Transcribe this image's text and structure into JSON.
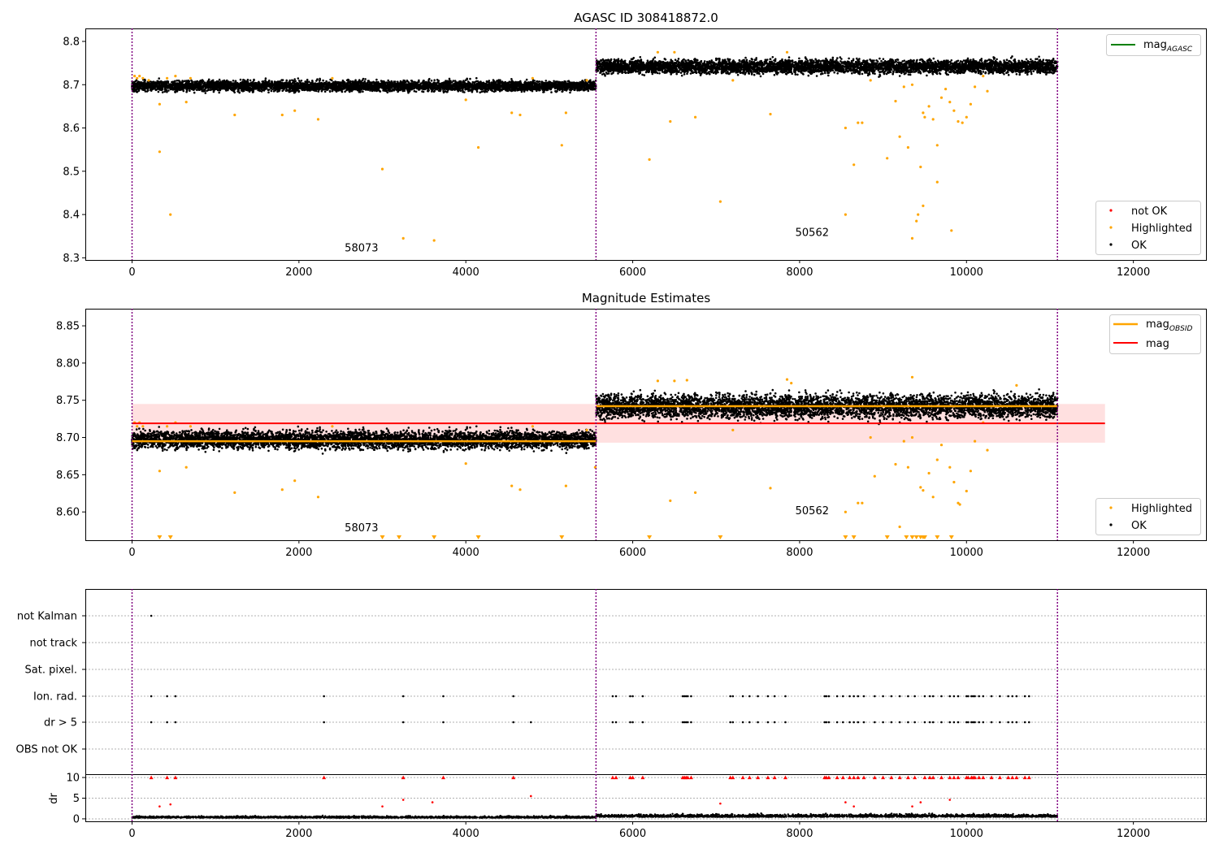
{
  "chart_data": [
    {
      "type": "scatter",
      "title": "AGASC ID 308418872.0",
      "xlim": [
        -560,
        12880
      ],
      "ylim": [
        8.295,
        8.83
      ],
      "xticks": [
        0,
        2000,
        4000,
        6000,
        8000,
        10000,
        12000
      ],
      "xtick_labels": [
        "0",
        "2000",
        "4000",
        "6000",
        "8000",
        "10000",
        "12000"
      ],
      "yticks": [
        8.3,
        8.4,
        8.5,
        8.6,
        8.7,
        8.8
      ],
      "ytick_labels": [
        "8.3",
        "8.4",
        "8.5",
        "8.6",
        "8.7",
        "8.8"
      ],
      "vlines": [
        0,
        5560,
        11090
      ],
      "colors": {
        "ok": "#000000",
        "highlighted": "#ffa500",
        "not_ok": "#ff0000",
        "mag_agasc": "#008000",
        "vline": "#800080"
      },
      "series": [
        {
          "name": "OK",
          "segments": [
            {
              "x0": 0,
              "x1": 5560,
              "center": 8.697,
              "spread": 0.012
            },
            {
              "x0": 5560,
              "x1": 11090,
              "center": 8.742,
              "spread": 0.016
            }
          ]
        },
        {
          "name": "Highlighted",
          "points": [
            [
              30,
              8.72
            ],
            [
              60,
              8.715
            ],
            [
              90,
              8.72
            ],
            [
              130,
              8.715
            ],
            [
              200,
              8.71
            ],
            [
              330,
              8.655
            ],
            [
              330,
              8.545
            ],
            [
              460,
              8.4
            ],
            [
              420,
              8.715
            ],
            [
              520,
              8.72
            ],
            [
              650,
              8.66
            ],
            [
              700,
              8.715
            ],
            [
              1230,
              8.63
            ],
            [
              1800,
              8.63
            ],
            [
              1950,
              8.64
            ],
            [
              2230,
              8.62
            ],
            [
              2400,
              8.715
            ],
            [
              3000,
              8.505
            ],
            [
              3250,
              8.345
            ],
            [
              3620,
              8.34
            ],
            [
              4000,
              8.665
            ],
            [
              4150,
              8.555
            ],
            [
              4550,
              8.635
            ],
            [
              4650,
              8.63
            ],
            [
              4800,
              8.715
            ],
            [
              5150,
              8.56
            ],
            [
              5200,
              8.635
            ],
            [
              5450,
              8.71
            ],
            [
              6200,
              8.527
            ],
            [
              6450,
              8.615
            ],
            [
              6750,
              8.625
            ],
            [
              7050,
              8.43
            ],
            [
              7650,
              8.632
            ],
            [
              7200,
              8.71
            ],
            [
              6300,
              8.775
            ],
            [
              6500,
              8.775
            ],
            [
              7850,
              8.775
            ],
            [
              8550,
              8.6
            ],
            [
              8550,
              8.4
            ],
            [
              8650,
              8.515
            ],
            [
              8700,
              8.612
            ],
            [
              8750,
              8.612
            ],
            [
              8850,
              8.71
            ],
            [
              9050,
              8.53
            ],
            [
              9150,
              8.662
            ],
            [
              9200,
              8.58
            ],
            [
              9300,
              8.555
            ],
            [
              9350,
              8.345
            ],
            [
              9350,
              8.7
            ],
            [
              9400,
              8.385
            ],
            [
              9420,
              8.4
            ],
            [
              9450,
              8.51
            ],
            [
              9480,
              8.42
            ],
            [
              9480,
              8.635
            ],
            [
              9500,
              8.625
            ],
            [
              9550,
              8.65
            ],
            [
              9600,
              8.62
            ],
            [
              9650,
              8.56
            ],
            [
              9650,
              8.475
            ],
            [
              9700,
              8.67
            ],
            [
              9750,
              8.69
            ],
            [
              9800,
              8.66
            ],
            [
              9820,
              8.363
            ],
            [
              9850,
              8.64
            ],
            [
              9900,
              8.615
            ],
            [
              9950,
              8.612
            ],
            [
              10000,
              8.625
            ],
            [
              10050,
              8.655
            ],
            [
              10100,
              8.695
            ],
            [
              10200,
              8.72
            ],
            [
              10250,
              8.685
            ],
            [
              9250,
              8.695
            ]
          ]
        }
      ],
      "legend_lines": [
        {
          "name": "mag",
          "subscript": "AGASC"
        }
      ],
      "legend_points": [
        "not OK",
        "Highlighted",
        "OK"
      ],
      "annotations": [
        {
          "text": "58073",
          "x": 2750,
          "y": 8.315
        },
        {
          "text": "50562",
          "x": 8150,
          "y": 8.35
        }
      ]
    },
    {
      "type": "scatter",
      "title": "Magnitude Estimates",
      "xlim": [
        -560,
        12880
      ],
      "ylim": [
        8.562,
        8.873
      ],
      "xticks": [
        0,
        2000,
        4000,
        6000,
        8000,
        10000,
        12000
      ],
      "xtick_labels": [
        "0",
        "2000",
        "4000",
        "6000",
        "8000",
        "10000",
        "12000"
      ],
      "yticks": [
        8.6,
        8.65,
        8.7,
        8.75,
        8.8,
        8.85
      ],
      "ytick_labels": [
        "8.60",
        "8.65",
        "8.70",
        "8.75",
        "8.80",
        "8.85"
      ],
      "vlines": [
        0,
        5560,
        11090
      ],
      "mag": 8.719,
      "mag_band": [
        8.693,
        8.745
      ],
      "mag_obsid": [
        {
          "x0": 0,
          "x1": 5560,
          "y": 8.695
        },
        {
          "x0": 5560,
          "x1": 11090,
          "y": 8.742
        }
      ],
      "band_xlim": [
        0,
        11660
      ],
      "series": [
        {
          "name": "OK",
          "segments": [
            {
              "x0": 0,
              "x1": 5560,
              "center": 8.697,
              "spread": 0.012
            },
            {
              "x0": 5560,
              "x1": 11090,
              "center": 8.742,
              "spread": 0.016
            }
          ]
        },
        {
          "name": "Highlighted",
          "points": [
            [
              30,
              8.72
            ],
            [
              60,
              8.715
            ],
            [
              90,
              8.72
            ],
            [
              130,
              8.715
            ],
            [
              330,
              8.655
            ],
            [
              420,
              8.715
            ],
            [
              520,
              8.72
            ],
            [
              650,
              8.66
            ],
            [
              700,
              8.715
            ],
            [
              1230,
              8.626
            ],
            [
              1800,
              8.63
            ],
            [
              1950,
              8.642
            ],
            [
              2230,
              8.62
            ],
            [
              2400,
              8.715
            ],
            [
              4000,
              8.665
            ],
            [
              4550,
              8.635
            ],
            [
              4650,
              8.63
            ],
            [
              4800,
              8.715
            ],
            [
              5200,
              8.635
            ],
            [
              5450,
              8.71
            ],
            [
              5550,
              8.66
            ],
            [
              6450,
              8.615
            ],
            [
              6750,
              8.626
            ],
            [
              7650,
              8.632
            ],
            [
              7200,
              8.71
            ],
            [
              6300,
              8.776
            ],
            [
              6500,
              8.776
            ],
            [
              6650,
              8.777
            ],
            [
              7850,
              8.778
            ],
            [
              7900,
              8.773
            ],
            [
              8550,
              8.6
            ],
            [
              8700,
              8.612
            ],
            [
              8750,
              8.612
            ],
            [
              8850,
              8.7
            ],
            [
              8900,
              8.648
            ],
            [
              9150,
              8.664
            ],
            [
              9200,
              8.58
            ],
            [
              9300,
              8.66
            ],
            [
              9350,
              8.781
            ],
            [
              9350,
              8.7
            ],
            [
              9450,
              8.633
            ],
            [
              9480,
              8.629
            ],
            [
              9550,
              8.652
            ],
            [
              9600,
              8.62
            ],
            [
              9650,
              8.67
            ],
            [
              9700,
              8.69
            ],
            [
              9800,
              8.66
            ],
            [
              9850,
              8.64
            ],
            [
              9900,
              8.612
            ],
            [
              9920,
              8.61
            ],
            [
              10000,
              8.628
            ],
            [
              10050,
              8.655
            ],
            [
              10100,
              8.695
            ],
            [
              10200,
              8.72
            ],
            [
              10250,
              8.683
            ],
            [
              10600,
              8.77
            ],
            [
              9250,
              8.695
            ]
          ]
        },
        {
          "name": "off-scale",
          "x": [
            330,
            460,
            3000,
            3200,
            3620,
            4150,
            5150,
            6200,
            7050,
            8550,
            8650,
            9050,
            9280,
            9350,
            9400,
            9450,
            9480,
            9500,
            9650,
            9820
          ]
        }
      ],
      "legend_lines": [
        {
          "name": "mag",
          "subscript": "OBSID"
        },
        {
          "name": "mag",
          "subscript": ""
        }
      ],
      "legend_points": [
        "Highlighted",
        "OK"
      ],
      "annotations": [
        {
          "text": "58073",
          "x": 2750,
          "y": 8.574
        },
        {
          "text": "50562",
          "x": 8150,
          "y": 8.597
        }
      ]
    },
    {
      "type": "scatter",
      "xlim": [
        -560,
        12880
      ],
      "flag_labels": [
        "not Kalman",
        "not track",
        "Sat. pixel.",
        "Ion. rad.",
        "dr > 5",
        "OBS not OK"
      ],
      "vlines": [
        0,
        5560,
        11090
      ],
      "not_kalman_x": [
        230
      ],
      "ion_x": [
        230,
        420,
        520,
        2300,
        3250,
        3730,
        4570,
        5760,
        5800,
        5970,
        6000,
        6120,
        6600,
        6620,
        6640,
        6660,
        6700,
        7170,
        7200,
        7320,
        7400,
        7500,
        7620,
        7700,
        7830,
        8300,
        8320,
        8350,
        8450,
        8520,
        8600,
        8650,
        8700,
        8770,
        8900,
        9000,
        9100,
        9200,
        9300,
        9380,
        9500,
        9560,
        9600,
        9700,
        9800,
        9850,
        9900,
        10000,
        10020,
        10060,
        10080,
        10100,
        10150,
        10200,
        10300,
        10400,
        10500,
        10550,
        10600,
        10700,
        10750
      ],
      "dr5_x": [
        230,
        420,
        520,
        2300,
        3250,
        3730,
        4570,
        4780,
        5760,
        5800,
        5970,
        6000,
        6120,
        6600,
        6620,
        6640,
        6660,
        6700,
        7170,
        7200,
        7320,
        7400,
        7500,
        7620,
        7700,
        7830,
        8300,
        8320,
        8350,
        8450,
        8520,
        8600,
        8650,
        8700,
        8770,
        8900,
        9000,
        9100,
        9200,
        9300,
        9380,
        9500,
        9560,
        9600,
        9700,
        9800,
        9850,
        9900,
        10000,
        10020,
        10060,
        10080,
        10100,
        10150,
        10200,
        10300,
        10400,
        10500,
        10550,
        10600,
        10700,
        10750
      ]
    },
    {
      "type": "scatter",
      "xlim": [
        -560,
        12880
      ],
      "ylim": [
        -0.6,
        10.8
      ],
      "ylabel": "dr",
      "yticks": [
        0,
        5,
        10
      ],
      "ytick_labels": [
        "0",
        "5",
        "10"
      ],
      "vlines": [
        0,
        5560,
        11090
      ],
      "capped_x": [
        230,
        420,
        520,
        2300,
        3250,
        3730,
        4570,
        5760,
        5800,
        5970,
        6000,
        6120,
        6600,
        6620,
        6640,
        6660,
        6700,
        7170,
        7200,
        7320,
        7400,
        7500,
        7620,
        7700,
        7830,
        8300,
        8320,
        8350,
        8450,
        8520,
        8600,
        8650,
        8700,
        8770,
        8900,
        9000,
        9100,
        9200,
        9300,
        9380,
        9500,
        9560,
        9600,
        9700,
        9800,
        9850,
        9900,
        10000,
        10020,
        10060,
        10080,
        10100,
        10150,
        10200,
        10300,
        10400,
        10500,
        10550,
        10600,
        10700,
        10750
      ],
      "red_points": [
        [
          330,
          3.0
        ],
        [
          460,
          3.5
        ],
        [
          3000,
          3.0
        ],
        [
          3250,
          4.6
        ],
        [
          3600,
          4.0
        ],
        [
          4780,
          5.5
        ],
        [
          7050,
          3.7
        ],
        [
          8550,
          4.0
        ],
        [
          8650,
          3.0
        ],
        [
          9350,
          3.0
        ],
        [
          9450,
          4.0
        ],
        [
          9800,
          4.6
        ]
      ],
      "segments": [
        {
          "x0": 0,
          "x1": 5560,
          "center": 0.25,
          "spread": 0.35
        },
        {
          "x0": 5560,
          "x1": 11090,
          "center": 0.45,
          "spread": 0.6
        }
      ]
    }
  ]
}
